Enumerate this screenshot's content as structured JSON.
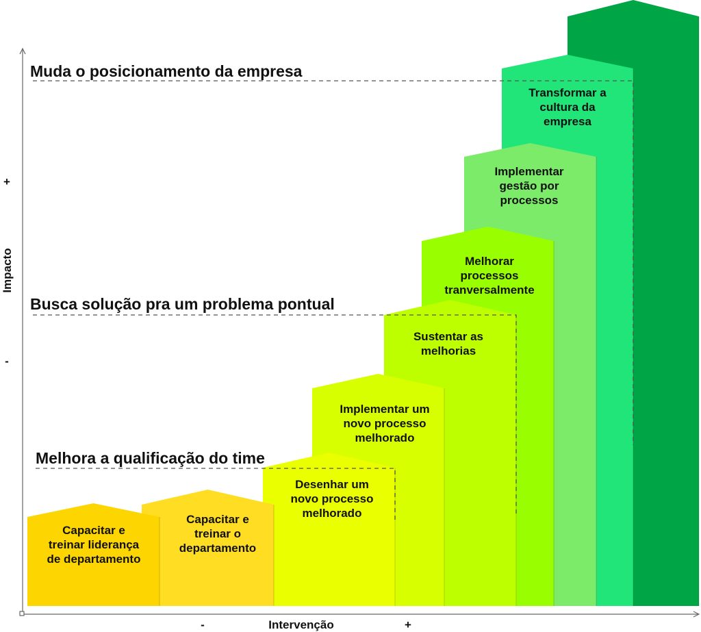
{
  "headings": {
    "top": "Muda o posicionamento da empresa",
    "middle": "Busca solução pra um problema pontual",
    "bottom": "Melhora a qualificação do time"
  },
  "axes": {
    "y_label": "Impacto",
    "y_plus": "+",
    "y_minus": "-",
    "x_label": "Intervenção",
    "x_minus": "-",
    "x_plus": "+"
  },
  "steps": [
    {
      "lines": [
        "Capacitar e",
        "treinar liderança",
        "de departamento"
      ],
      "color": "#FDD500"
    },
    {
      "lines": [
        "Capacitar e",
        "treinar o",
        "departamento"
      ],
      "color": "#FEDD22"
    },
    {
      "lines": [
        "Desenhar um",
        "novo processo",
        "melhorado"
      ],
      "color": "#EAFF00"
    },
    {
      "lines": [
        "Implementar um",
        "novo processo",
        "melhorado"
      ],
      "color": "#D8FF00"
    },
    {
      "lines": [
        "Sustentar as",
        "melhorias"
      ],
      "color": "#BEFF00"
    },
    {
      "lines": [
        "Melhorar",
        "processos",
        "tranversalmente"
      ],
      "color": "#99FF00"
    },
    {
      "lines": [
        "Implementar",
        "gestão por",
        "processos"
      ],
      "color": "#7CEB6A"
    },
    {
      "lines": [
        "Transformar a",
        "cultura da",
        "empresa"
      ],
      "color": "#22E57A"
    },
    {
      "lines": [],
      "color": "#00A645"
    }
  ]
}
